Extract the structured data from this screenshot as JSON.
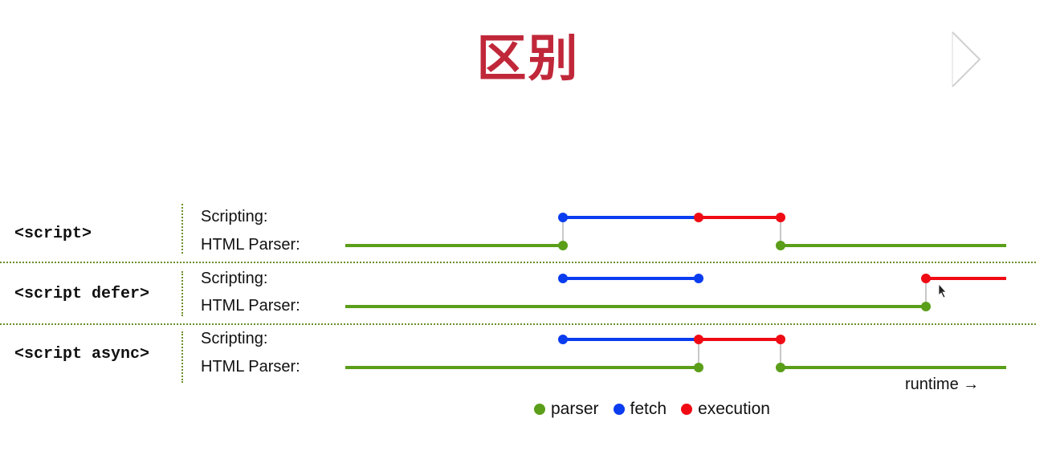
{
  "title": "区别",
  "lanes": [
    {
      "tag": "<script>",
      "scripting_label": "Scripting:",
      "parser_label": "HTML Parser:"
    },
    {
      "tag": "<script defer>",
      "scripting_label": "Scripting:",
      "parser_label": "HTML Parser:"
    },
    {
      "tag": "<script async>",
      "scripting_label": "Scripting:",
      "parser_label": "HTML Parser:"
    }
  ],
  "runtime_label": "runtime →",
  "legend": [
    {
      "label": "parser",
      "color": "#5a9e1a"
    },
    {
      "label": "fetch",
      "color": "#0a3cf0"
    },
    {
      "label": "execution",
      "color": "#f00a14"
    }
  ],
  "colors": {
    "parser": "#5a9e1a",
    "fetch": "#0a3cf0",
    "execution": "#f00a14",
    "connector": "#c8c8c8"
  }
}
